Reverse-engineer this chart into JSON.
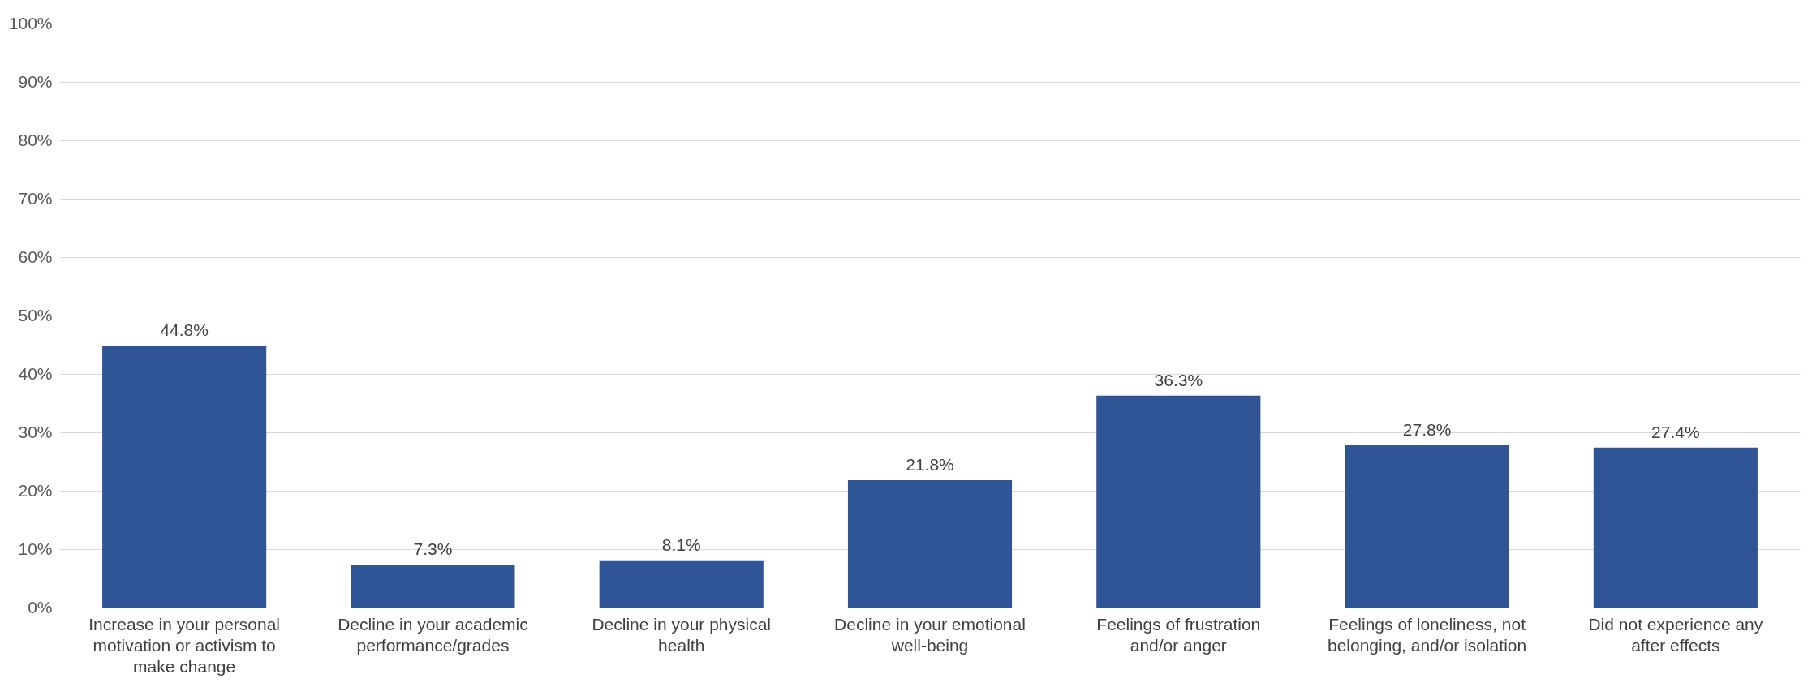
{
  "chart_data": {
    "type": "bar",
    "categories": [
      "Increase in your personal motivation or activism to make change",
      "Decline in your academic performance/grades",
      "Decline in your physical health",
      "Decline in your emotional well-being",
      "Feelings of frustration and/or anger",
      "Feelings of loneliness, not belonging, and/or isolation",
      "Did not experience any after effects"
    ],
    "values": [
      44.8,
      7.3,
      8.1,
      21.8,
      36.3,
      27.8,
      27.4
    ],
    "color": "#2f5597",
    "value_labels": [
      "44.8%",
      "7.3%",
      "8.1%",
      "21.8%",
      "36.3%",
      "27.8%",
      "27.4%"
    ],
    "ylim": [
      0,
      100
    ],
    "yticks": [
      {
        "value": 0,
        "label": "0%"
      },
      {
        "value": 10,
        "label": "10%"
      },
      {
        "value": 20,
        "label": "20%"
      },
      {
        "value": 30,
        "label": "30%"
      },
      {
        "value": 40,
        "label": "40%"
      },
      {
        "value": 50,
        "label": "50%"
      },
      {
        "value": 60,
        "label": "60%"
      },
      {
        "value": 70,
        "label": "70%"
      },
      {
        "value": 80,
        "label": "80%"
      },
      {
        "value": 90,
        "label": "90%"
      },
      {
        "value": 100,
        "label": "100%"
      }
    ],
    "grid": "y"
  }
}
